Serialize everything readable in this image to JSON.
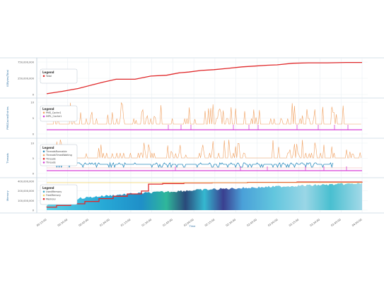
{
  "chart_data": [
    {
      "type": "line",
      "ylabel": "IOBytes/Total",
      "ylim": [
        0,
        750000000
      ],
      "yticks": [
        "750,000,000",
        "250,000,000",
        "0"
      ],
      "legend": {
        "title": "Legend",
        "placement": "top-left",
        "entries": [
          "Total"
        ]
      },
      "series": [
        {
          "name": "Total",
          "color": "#e0292b",
          "x": [
            0,
            5,
            10,
            14,
            18,
            22,
            28,
            33,
            38,
            42,
            45,
            49,
            53,
            57,
            62,
            66,
            70,
            73,
            78,
            83,
            89,
            95,
            100
          ],
          "values": [
            20,
            80,
            150,
            230,
            310,
            380,
            380,
            460,
            480,
            540,
            560,
            600,
            620,
            650,
            690,
            710,
            730,
            740,
            780,
            790,
            790,
            800,
            800
          ]
        }
      ]
    },
    {
      "type": "line",
      "ylabel": "PMSCache/Entries",
      "ylim": [
        0,
        10
      ],
      "yticks": [
        "10",
        "5",
        "0"
      ],
      "legend": {
        "title": "Legend",
        "placement": "top-left",
        "entries": [
          "PMS_Cache1",
          "IMPL_Cache1"
        ]
      },
      "series": [
        {
          "name": "PMS_Cache1",
          "color": "#f0a060"
        },
        {
          "name": "IMPL_Cache1",
          "color": "#d63fd6"
        }
      ]
    },
    {
      "type": "line",
      "ylabel": "Threads",
      "ylim": [
        0,
        10
      ],
      "yticks": [
        "10",
        "5",
        "0"
      ],
      "legend": {
        "title": "Legend",
        "placement": "top-left",
        "entries": [
          "ThreadsRunnable",
          "ThreadsTimedWaiting",
          "Threads",
          "Threads"
        ]
      },
      "series": [
        {
          "name": "ThreadsRunnable",
          "color": "#2b8cbe"
        },
        {
          "name": "ThreadsTimedWaiting",
          "color": "#f0a060"
        },
        {
          "name": "Threads",
          "color": "#e0292b"
        },
        {
          "name": "Threads",
          "color": "#d63fd6"
        }
      ]
    },
    {
      "type": "area",
      "ylabel": "Memory",
      "ylim": [
        0,
        400000000
      ],
      "yticks": [
        "400,000,000",
        "200,000,000",
        "100,000,000",
        "0"
      ],
      "xlabel": "Time",
      "xticks": [
        "00:15:00",
        "00:30:00",
        "00:45:00",
        "01:00:00",
        "01:15:00",
        "01:30:00",
        "01:45:00",
        "02:00:00",
        "02:15:00",
        "02:30:00",
        "02:45:00",
        "03:00:00",
        "03:15:00",
        "03:30:00",
        "03:45:00",
        "04:00:00"
      ],
      "legend": {
        "title": "Legend",
        "placement": "top-left",
        "entries": [
          "UsedMemory",
          "FreeMemory",
          "Memory"
        ]
      },
      "series": [
        {
          "name": "UsedMemory",
          "color": "#3aa7c9"
        },
        {
          "name": "FreeMemory",
          "color": "#f2d060"
        },
        {
          "name": "Memory",
          "color": "#e0292b"
        }
      ]
    }
  ]
}
